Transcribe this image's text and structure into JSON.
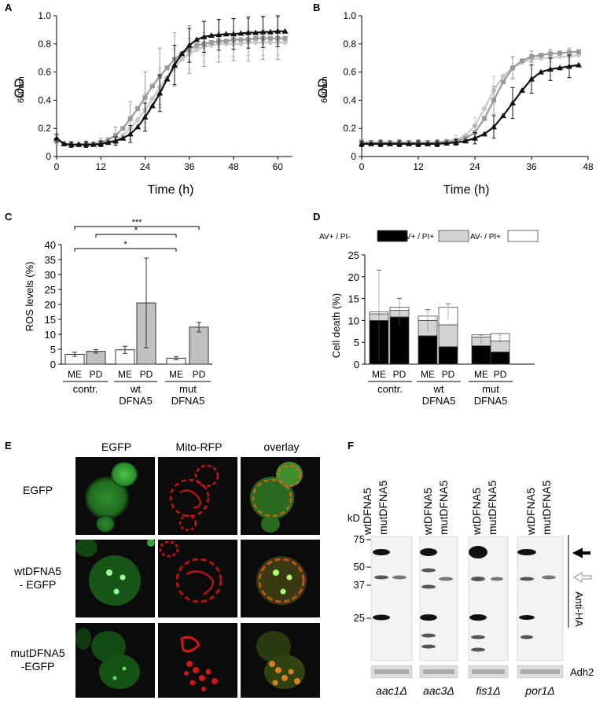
{
  "panels": {
    "A": "A",
    "B": "B",
    "C": "C",
    "D": "D",
    "E": "E",
    "F": "F"
  },
  "colors": {
    "black_series": "#111111",
    "dark_gray_series": "#9a9a9a",
    "light_gray_series": "#c8c8c8",
    "bar_white": "#ffffff",
    "bar_gray": "#c0c0c0",
    "av_pos_pi_neg": "#000000",
    "av_pos_pi_pos": "#d3d3d3",
    "av_neg_pi_pos": "#ffffff"
  },
  "chart_data": [
    {
      "panel": "A",
      "type": "line",
      "ylabel_main": "OD",
      "ylabel_sub": "600nm",
      "xlabel": "Time (h)",
      "xlim": [
        0,
        64
      ],
      "ylim": [
        0,
        1.0
      ],
      "xticks": [
        "0",
        "12",
        "24",
        "36",
        "48",
        "60"
      ],
      "xtick_values": [
        0,
        12,
        24,
        36,
        48,
        60
      ],
      "yticks": [
        "0",
        "0.2",
        "0.4",
        "0.6",
        "0.8",
        "1.0"
      ],
      "ytick_values": [
        0,
        0.2,
        0.4,
        0.6,
        0.8,
        1.0
      ],
      "x": [
        0,
        2,
        4,
        6,
        8,
        10,
        12,
        14,
        16,
        18,
        20,
        22,
        24,
        26,
        28,
        30,
        32,
        34,
        36,
        38,
        40,
        42,
        44,
        46,
        48,
        50,
        52,
        54,
        56,
        58,
        60,
        62
      ],
      "series": [
        {
          "color": "#111111",
          "marker": "triangle",
          "values": [
            0.13,
            0.09,
            0.085,
            0.085,
            0.085,
            0.085,
            0.09,
            0.1,
            0.11,
            0.13,
            0.16,
            0.21,
            0.28,
            0.36,
            0.45,
            0.55,
            0.65,
            0.73,
            0.79,
            0.83,
            0.85,
            0.86,
            0.865,
            0.87,
            0.87,
            0.875,
            0.88,
            0.88,
            0.885,
            0.885,
            0.89,
            0.89
          ],
          "errors": [
            0.03,
            0.02,
            0.02,
            0.02,
            0.02,
            0.02,
            0.02,
            0.03,
            0.03,
            0.04,
            0.06,
            0.08,
            0.1,
            0.12,
            0.13,
            0.14,
            0.14,
            0.13,
            0.12,
            0.12,
            0.11,
            0.11,
            0.11,
            0.11,
            0.11,
            0.11,
            0.11,
            0.11,
            0.11,
            0.11,
            0.11,
            0.11
          ]
        },
        {
          "color": "#9a9a9a",
          "marker": "square",
          "values": [
            0.12,
            0.09,
            0.085,
            0.085,
            0.09,
            0.09,
            0.1,
            0.12,
            0.15,
            0.2,
            0.27,
            0.34,
            0.42,
            0.5,
            0.57,
            0.63,
            0.69,
            0.73,
            0.76,
            0.79,
            0.8,
            0.81,
            0.82,
            0.82,
            0.83,
            0.83,
            0.83,
            0.84,
            0.84,
            0.84,
            0.84,
            0.84
          ],
          "errors": [
            0.03,
            0.02,
            0.02,
            0.02,
            0.02,
            0.02,
            0.03,
            0.04,
            0.06,
            0.09,
            0.12,
            0.15,
            0.18,
            0.2,
            0.2,
            0.2,
            0.19,
            0.18,
            0.17,
            0.16,
            0.16,
            0.15,
            0.15,
            0.15,
            0.15,
            0.15,
            0.15,
            0.15,
            0.15,
            0.15,
            0.15,
            0.15
          ]
        },
        {
          "color": "#c8c8c8",
          "marker": "diamond",
          "values": [
            0.12,
            0.09,
            0.085,
            0.085,
            0.085,
            0.09,
            0.09,
            0.1,
            0.12,
            0.15,
            0.2,
            0.26,
            0.33,
            0.41,
            0.49,
            0.56,
            0.63,
            0.69,
            0.73,
            0.76,
            0.78,
            0.79,
            0.8,
            0.8,
            0.8,
            0.8,
            0.81,
            0.81,
            0.81,
            0.81,
            0.81,
            0.81
          ],
          "errors": [
            0.03,
            0.02,
            0.02,
            0.02,
            0.02,
            0.02,
            0.02,
            0.03,
            0.04,
            0.06,
            0.08,
            0.1,
            0.12,
            0.14,
            0.14,
            0.14,
            0.13,
            0.12,
            0.11,
            0.1,
            0.1,
            0.09,
            0.09,
            0.09,
            0.09,
            0.09,
            0.09,
            0.09,
            0.09,
            0.09,
            0.09,
            0.09
          ]
        }
      ]
    },
    {
      "panel": "B",
      "type": "line",
      "ylabel_main": "OD",
      "ylabel_sub": "600nm",
      "xlabel": "Time (h)",
      "xlim": [
        0,
        48
      ],
      "ylim": [
        0,
        1.0
      ],
      "xticks": [
        "0",
        "12",
        "24",
        "36",
        "48"
      ],
      "xtick_values": [
        0,
        12,
        24,
        36,
        48
      ],
      "yticks": [
        "0",
        "0.2",
        "0.4",
        "0.6",
        "0.8",
        "1.0"
      ],
      "ytick_values": [
        0,
        0.2,
        0.4,
        0.6,
        0.8,
        1.0
      ],
      "x": [
        0,
        2,
        4,
        6,
        8,
        10,
        12,
        14,
        16,
        18,
        20,
        22,
        24,
        26,
        28,
        30,
        32,
        34,
        36,
        38,
        40,
        42,
        44,
        46
      ],
      "series": [
        {
          "color": "#111111",
          "marker": "triangle",
          "values": [
            0.09,
            0.09,
            0.09,
            0.09,
            0.09,
            0.09,
            0.09,
            0.09,
            0.09,
            0.095,
            0.1,
            0.11,
            0.13,
            0.16,
            0.21,
            0.29,
            0.38,
            0.47,
            0.55,
            0.6,
            0.62,
            0.63,
            0.64,
            0.65
          ],
          "errors": [
            0.02,
            0.02,
            0.02,
            0.02,
            0.02,
            0.02,
            0.02,
            0.02,
            0.02,
            0.02,
            0.02,
            0.03,
            0.04,
            0.06,
            0.08,
            0.1,
            0.11,
            0.11,
            0.1,
            0.09,
            0.08,
            0.08,
            0.08,
            0.08
          ]
        },
        {
          "color": "#9a9a9a",
          "marker": "square",
          "values": [
            0.1,
            0.1,
            0.1,
            0.1,
            0.1,
            0.1,
            0.1,
            0.1,
            0.1,
            0.105,
            0.11,
            0.13,
            0.17,
            0.27,
            0.4,
            0.53,
            0.63,
            0.68,
            0.71,
            0.72,
            0.73,
            0.735,
            0.74,
            0.745
          ],
          "errors": [
            0.02,
            0.02,
            0.02,
            0.02,
            0.02,
            0.02,
            0.02,
            0.02,
            0.02,
            0.02,
            0.02,
            0.03,
            0.05,
            0.08,
            0.1,
            0.1,
            0.08,
            0.05,
            0.04,
            0.03,
            0.03,
            0.03,
            0.03,
            0.03
          ]
        },
        {
          "color": "#c8c8c8",
          "marker": "diamond",
          "values": [
            0.1,
            0.1,
            0.1,
            0.1,
            0.1,
            0.1,
            0.1,
            0.1,
            0.1,
            0.11,
            0.12,
            0.15,
            0.22,
            0.34,
            0.47,
            0.57,
            0.63,
            0.67,
            0.69,
            0.7,
            0.7,
            0.71,
            0.71,
            0.72
          ],
          "errors": [
            0.02,
            0.02,
            0.02,
            0.02,
            0.02,
            0.02,
            0.02,
            0.02,
            0.02,
            0.02,
            0.03,
            0.04,
            0.06,
            0.09,
            0.1,
            0.09,
            0.07,
            0.05,
            0.04,
            0.03,
            0.03,
            0.03,
            0.03,
            0.03
          ]
        }
      ]
    },
    {
      "panel": "C",
      "type": "bar",
      "ylabel": "ROS levels (%)",
      "ylim": [
        0,
        40
      ],
      "yticks": [
        "0",
        "5",
        "10",
        "15",
        "20",
        "25",
        "30",
        "35",
        "40"
      ],
      "ytick_values": [
        0,
        5,
        10,
        15,
        20,
        25,
        30,
        35,
        40
      ],
      "categories": [
        "ME",
        "PD",
        "ME",
        "PD",
        "ME",
        "PD"
      ],
      "fills": [
        "#ffffff",
        "#c0c0c0",
        "#ffffff",
        "#c0c0c0",
        "#ffffff",
        "#c0c0c0"
      ],
      "values": [
        3.3,
        4.3,
        4.8,
        20.5,
        2.0,
        12.4
      ],
      "errors": [
        0.7,
        0.6,
        1.2,
        15,
        0.5,
        1.6
      ],
      "groups": [
        {
          "line1": "contr.",
          "line2": ""
        },
        {
          "line1": "wt",
          "line2": "DFNA5"
        },
        {
          "line1": "mut",
          "line2": "DFNA5"
        }
      ],
      "significance": [
        {
          "from": 0,
          "to": 5,
          "label": "***"
        },
        {
          "from": 1,
          "to": 4,
          "label": "*"
        },
        {
          "from": 0,
          "to": 4,
          "label": "*"
        }
      ]
    },
    {
      "panel": "D",
      "type": "bar",
      "stacked": true,
      "ylabel": "Cell death (%)",
      "ylim": [
        0,
        25
      ],
      "yticks": [
        "0",
        "5",
        "10",
        "15",
        "20",
        "25"
      ],
      "ytick_values": [
        0,
        5,
        10,
        15,
        20,
        25
      ],
      "categories": [
        "ME",
        "PD",
        "ME",
        "PD",
        "ME",
        "PD"
      ],
      "legend": [
        "AV+ / PI-",
        "AV+ / PI+",
        "AV- / PI+"
      ],
      "series": [
        {
          "name": "AV+ / PI-",
          "color": "#000000",
          "values": [
            10,
            10.8,
            6.5,
            4,
            4.2,
            2.8
          ]
        },
        {
          "name": "AV+ / PI+",
          "color": "#d3d3d3",
          "values": [
            1.5,
            1.5,
            3.5,
            5,
            2,
            2.5
          ]
        },
        {
          "name": "AV- / PI+",
          "color": "#ffffff",
          "values": [
            0.5,
            0.7,
            1,
            4,
            0.5,
            1.7
          ]
        }
      ],
      "errors": [
        10.5,
        3,
        2.5,
        1.8,
        1,
        1
      ],
      "groups": [
        {
          "line1": "contr.",
          "line2": ""
        },
        {
          "line1": "wt",
          "line2": "DFNA5"
        },
        {
          "line1": "mut",
          "line2": "DFNA5"
        }
      ]
    }
  ],
  "panel_e": {
    "columns": [
      "EGFP",
      "Mito-RFP",
      "overlay"
    ],
    "rows": [
      {
        "line1": "EGFP",
        "line2": ""
      },
      {
        "line1": "wtDFNA5",
        "line2": "- EGFP"
      },
      {
        "line1": "mutDFNA5",
        "line2": "-EGFP"
      }
    ]
  },
  "panel_f": {
    "kd_label": "kD",
    "markers": [
      "75",
      "50",
      "37",
      "25"
    ],
    "lane_labels": [
      "wtDFNA5",
      "mutDFNA5",
      "wtDFNA5",
      "mutDFNA5",
      "wtDFNA5",
      "mutDFNA5",
      "wtDFNA5",
      "mutDFNA5"
    ],
    "strains": [
      "aac1Δ",
      "aac3Δ",
      "fis1Δ",
      "por1Δ"
    ],
    "antibody": "Anti-HA",
    "loading_control": "Adh2"
  }
}
